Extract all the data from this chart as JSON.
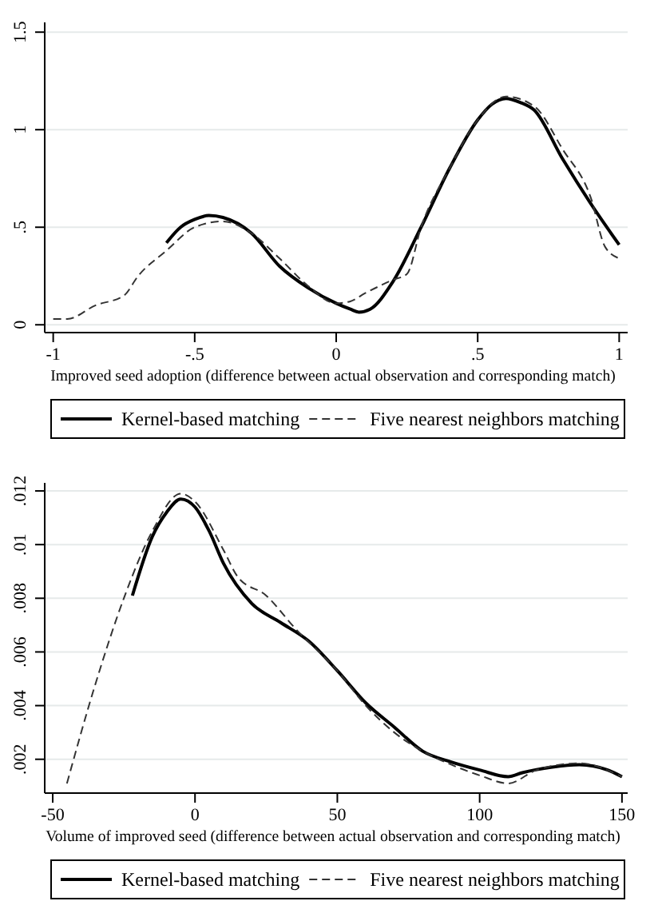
{
  "chart_data": [
    {
      "type": "line",
      "xlabel": "Improved seed adoption (difference between actual observation and corresponding match)",
      "xlim": [
        -1.03,
        1.03
      ],
      "ylim": [
        -0.04,
        1.55
      ],
      "xticks": [
        -1,
        {
          "value": -0.5,
          "label": "-.5"
        },
        0,
        {
          "value": 0.5,
          "label": ".5"
        },
        1
      ],
      "yticks": [
        0,
        {
          "value": 0.5,
          "label": ".5"
        },
        1,
        1.5
      ],
      "grid": "y",
      "legend": "bottom",
      "series": [
        {
          "name": "Kernel-based matching",
          "color": "#000000",
          "line_style": "solid",
          "x": [
            -0.6,
            -0.55,
            -0.5,
            -0.45,
            -0.4,
            -0.3,
            -0.2,
            -0.1,
            0,
            0.05,
            0.08,
            0.12,
            0.2,
            0.3,
            0.4,
            0.5,
            0.55,
            0.6,
            0.65,
            0.7,
            0.8,
            0.9,
            1.0
          ],
          "values": [
            0.42,
            0.5,
            0.54,
            0.56,
            0.55,
            0.47,
            0.3,
            0.19,
            0.11,
            0.08,
            0.065,
            0.08,
            0.22,
            0.5,
            0.8,
            1.05,
            1.13,
            1.16,
            1.14,
            1.1,
            0.85,
            0.62,
            0.41
          ]
        },
        {
          "name": "Five nearest neighbors matching",
          "color": "#333333",
          "line_style": "dashed",
          "x": [
            -1,
            -0.95,
            -0.85,
            -0.75,
            -0.7,
            -0.6,
            -0.5,
            -0.4,
            -0.3,
            -0.2,
            -0.1,
            0,
            0.05,
            0.1,
            0.2,
            0.25,
            0.3,
            0.4,
            0.5,
            0.6,
            0.7,
            0.8,
            0.9,
            0.95,
            1.0
          ],
          "values": [
            0.03,
            0.03,
            0.1,
            0.15,
            0.25,
            0.38,
            0.5,
            0.53,
            0.47,
            0.34,
            0.2,
            0.11,
            0.12,
            0.16,
            0.23,
            0.26,
            0.5,
            0.8,
            1.05,
            1.17,
            1.12,
            0.9,
            0.65,
            0.4,
            0.34
          ]
        }
      ]
    },
    {
      "type": "line",
      "xlabel": "Volume of improved seed (difference between actual observation and corresponding match)",
      "xlim": [
        -52.8,
        152
      ],
      "ylim": [
        0.00074,
        0.0123
      ],
      "xticks": [
        -50,
        0,
        50,
        100,
        150
      ],
      "yticks": [
        {
          "value": 0.002,
          "label": ".002"
        },
        {
          "value": 0.004,
          "label": ".004"
        },
        {
          "value": 0.006,
          "label": ".006"
        },
        {
          "value": 0.008,
          "label": ".008"
        },
        {
          "value": 0.01,
          "label": ".01"
        },
        {
          "value": 0.012,
          "label": ".012"
        }
      ],
      "grid": "y",
      "legend": "bottom",
      "series": [
        {
          "name": "Kernel-based matching",
          "color": "#000000",
          "line_style": "solid",
          "x": [
            -22,
            -15,
            -10,
            -5,
            0,
            5,
            10,
            20,
            30,
            40,
            50,
            60,
            70,
            80,
            90,
            100,
            110,
            115,
            125,
            135,
            145,
            150
          ],
          "values": [
            0.0081,
            0.0103,
            0.0112,
            0.0117,
            0.0114,
            0.0105,
            0.0093,
            0.0078,
            0.0071,
            0.0064,
            0.0053,
            0.0041,
            0.0032,
            0.0023,
            0.0019,
            0.0016,
            0.00135,
            0.0015,
            0.0017,
            0.0018,
            0.0016,
            0.00135
          ]
        },
        {
          "name": "Five nearest neighbors matching",
          "color": "#333333",
          "line_style": "dashed",
          "x": [
            -45,
            -35,
            -25,
            -15,
            -5,
            0,
            10,
            15,
            25,
            35,
            50,
            60,
            70,
            80,
            90,
            100,
            110,
            120,
            135,
            150
          ],
          "values": [
            0.0011,
            0.0048,
            0.008,
            0.0105,
            0.0119,
            0.0116,
            0.0098,
            0.0088,
            0.0081,
            0.0069,
            0.0053,
            0.004,
            0.003,
            0.0023,
            0.0018,
            0.0014,
            0.0011,
            0.0016,
            0.00185,
            0.00135
          ]
        }
      ]
    }
  ]
}
